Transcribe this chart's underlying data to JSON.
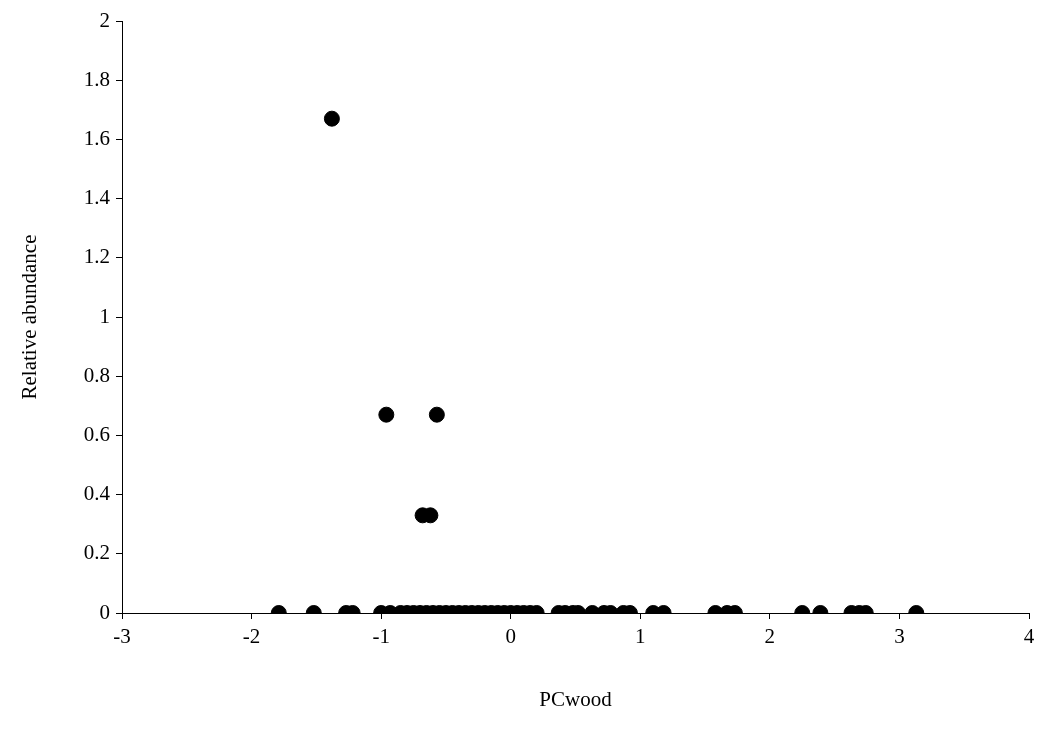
{
  "chart_data": {
    "type": "scatter",
    "xlabel": "PCwood",
    "ylabel": "Relative abundance",
    "x": [
      -1.38,
      -0.96,
      -0.57,
      -0.68,
      -0.62,
      -1.79,
      -1.52,
      -1.27,
      -1.22,
      -1.0,
      -0.93,
      -0.85,
      -0.8,
      -0.75,
      -0.7,
      -0.65,
      -0.6,
      -0.55,
      -0.5,
      -0.45,
      -0.4,
      -0.35,
      -0.3,
      -0.25,
      -0.2,
      -0.15,
      -0.1,
      -0.05,
      0,
      0.05,
      0.1,
      0.15,
      0.2,
      0.37,
      0.42,
      0.48,
      0.52,
      0.63,
      0.72,
      0.77,
      0.87,
      0.92,
      1.1,
      1.18,
      1.58,
      1.67,
      1.73,
      2.25,
      2.39,
      2.63,
      2.69,
      2.74,
      3.13
    ],
    "values": [
      1.67,
      0.67,
      0.67,
      0.33,
      0.33,
      0,
      0,
      0,
      0,
      0,
      0,
      0,
      0,
      0,
      0,
      0,
      0,
      0,
      0,
      0,
      0,
      0,
      0,
      0,
      0,
      0,
      0,
      0,
      0,
      0,
      0,
      0,
      0,
      0,
      0,
      0,
      0,
      0,
      0,
      0,
      0,
      0,
      0,
      0,
      0,
      0,
      0,
      0,
      0,
      0,
      0,
      0,
      0
    ],
    "color": "#000000",
    "marker": "circle",
    "grid": false,
    "legend": false,
    "xlim": [
      -3,
      4
    ],
    "xticks": [
      -3,
      -2,
      -1,
      0,
      1,
      2,
      3,
      4
    ],
    "ylim": [
      0,
      2
    ],
    "yticks": [
      0,
      0.2,
      0.4,
      0.6,
      0.8,
      1,
      1.2,
      1.4,
      1.6,
      1.8,
      2
    ]
  }
}
